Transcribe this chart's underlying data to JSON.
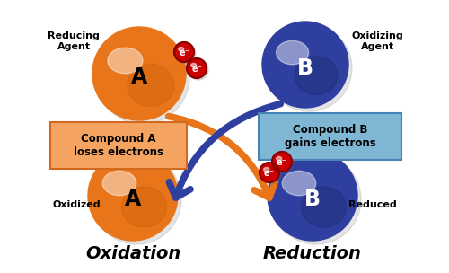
{
  "bg_color": "#ffffff",
  "orange_color": "#E8751A",
  "orange_dark": "#C85A00",
  "orange_light": "#F5A05A",
  "blue_color": "#2E3FA0",
  "blue_dark": "#1a2560",
  "blue_light": "#5060C0",
  "red_electron": "#CC0000",
  "red_dark": "#880000",
  "orange_box_bg": "#F4A460",
  "blue_box_bg": "#7EB6D4",
  "box_border_orange": "#D2691E",
  "box_border_blue": "#4682B4",
  "reducing_agent": "Reducing\nAgent",
  "oxidizing_agent": "Oxidizing\nAgent",
  "oxidized_label": "Oxidized",
  "reduced_label": "Reduced",
  "compound_a_text": "Compound A\nloses electrons",
  "compound_b_text": "Compound B\ngains electrons",
  "oxidation_title": "Oxidation",
  "reduction_title": "Reduction"
}
